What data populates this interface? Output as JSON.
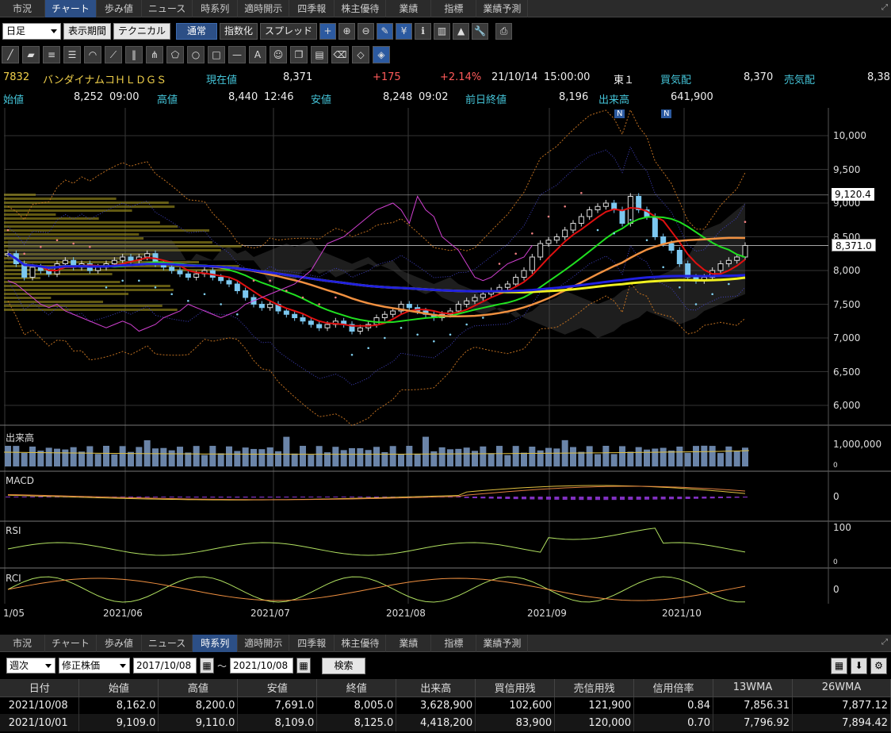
{
  "top_tabs": [
    "市況",
    "チャート",
    "歩み値",
    "ニュース",
    "時系列",
    "適時開示",
    "四季報",
    "株主優待",
    "業績",
    "指標",
    "業績予測"
  ],
  "top_active": 1,
  "bottom_tabs": [
    "市況",
    "チャート",
    "歩み値",
    "ニュース",
    "時系列",
    "適時開示",
    "四季報",
    "株主優待",
    "業績",
    "指標",
    "業績予測"
  ],
  "bottom_active": 4,
  "toolbar": {
    "period_select": "日足",
    "display_period": "表示期間",
    "technical": "テクニカル",
    "normal": "通常",
    "index": "指数化",
    "spread": "スプレッド"
  },
  "quote": {
    "code": "7832",
    "name": "バンダイナムコＨＬＤＧＳ",
    "current_label": "現在値",
    "current_value": "8,371",
    "change": "+175",
    "change_pct": "+2.14%",
    "datetime": "21/10/14",
    "time": "15:00:00",
    "market": "東１",
    "bid_label": "買気配",
    "bid_value": "8,370",
    "ask_label": "売気配",
    "ask_value": "8,38",
    "open_label": "始値",
    "open_value": "8,252",
    "open_time": "09:00",
    "high_label": "高値",
    "high_value": "8,440",
    "high_time": "12:46",
    "low_label": "安値",
    "low_value": "8,248",
    "low_time": "09:02",
    "prev_label": "前日終値",
    "prev_value": "8,196",
    "vol_label": "出来高",
    "vol_value": "641,900"
  },
  "chart": {
    "price_ticks": [
      "10,000",
      "9,500",
      "9,000",
      "8,500",
      "8,000",
      "7,500",
      "7,000",
      "6,500",
      "6,000"
    ],
    "hline_label": "9,120.4",
    "last_label": "8,371.0",
    "news_badge": "N",
    "volume_title": "出来高",
    "volume_tick": "1,000,000",
    "volume_zero": "0",
    "macd_title": "MACD",
    "macd_zero": "0",
    "rsi_title": "RSI",
    "rsi_100": "100",
    "rsi_0": "0",
    "rci_title": "RCI",
    "rci_zero": "0",
    "x_labels": [
      "1/05",
      "2021/06",
      "2021/07",
      "2021/08",
      "2021/09",
      "2021/10"
    ]
  },
  "filter": {
    "span": "週次",
    "adjust": "修正株価",
    "from": "2017/10/08",
    "tilde": "～",
    "to": "2021/10/08",
    "search": "検索"
  },
  "table": {
    "headers": [
      "日付",
      "始値",
      "高値",
      "安値",
      "終値",
      "出来高",
      "買信用残",
      "売信用残",
      "信用倍率",
      "13WMA",
      "26WMA"
    ],
    "rows": [
      [
        "2021/10/08",
        "8,162.0",
        "8,200.0",
        "7,691.0",
        "8,005.0",
        "3,628,900",
        "102,600",
        "121,900",
        "0.84",
        "7,856.31",
        "7,877.12"
      ],
      [
        "2021/10/01",
        "9,109.0",
        "9,110.0",
        "8,109.0",
        "8,125.0",
        "4,418,200",
        "83,900",
        "120,000",
        "0.70",
        "7,796.92",
        "7,894.42"
      ]
    ]
  }
}
